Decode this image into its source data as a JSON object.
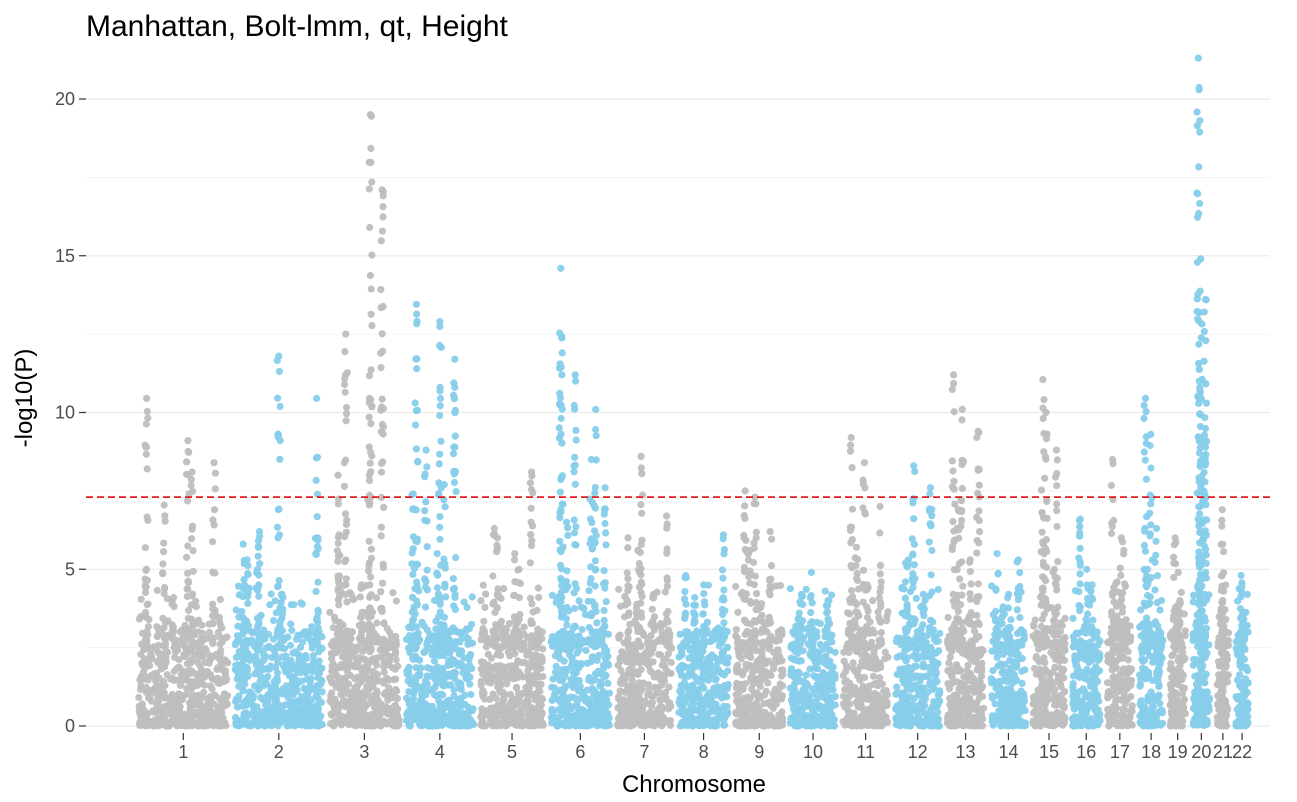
{
  "chart_data": {
    "type": "scatter",
    "title": "Manhattan, Bolt-lmm, qt, Height",
    "xlabel": "Chromosome",
    "ylabel": "-log10(P)",
    "ylim": [
      0,
      21.3
    ],
    "y_ticks": [
      0,
      5,
      10,
      15,
      20
    ],
    "grid": true,
    "threshold": {
      "value": 7.3,
      "color": "#e31a1c",
      "style": "dashed"
    },
    "colors": [
      "#bebebe",
      "#87ceeb"
    ],
    "chromosomes": [
      {
        "label": "1",
        "length": 249,
        "peaks": [
          10.45,
          9.1,
          8.4,
          7.05,
          8.1,
          5.0,
          4.1
        ]
      },
      {
        "label": "2",
        "length": 243,
        "peaks": [
          5.3,
          11.8,
          10.45,
          5.0,
          4.2,
          5.8,
          6.2
        ]
      },
      {
        "label": "3",
        "length": 198,
        "peaks": [
          6.1,
          19.5,
          17.1,
          12.5,
          8.9,
          8.0,
          4.5
        ]
      },
      {
        "label": "4",
        "length": 191,
        "peaks": [
          13.45,
          12.9,
          11.7,
          8.8,
          7.7,
          7.4,
          5.5
        ]
      },
      {
        "label": "5",
        "length": 181,
        "peaks": [
          6.3,
          5.5,
          8.1,
          6.0,
          5.0,
          4.4
        ]
      },
      {
        "label": "6",
        "length": 171,
        "peaks": [
          14.6,
          11.2,
          10.1,
          11.2,
          8.5,
          7.6,
          6.5
        ]
      },
      {
        "label": "7",
        "length": 159,
        "peaks": [
          6.0,
          8.6,
          6.7,
          5.6,
          4.2
        ]
      },
      {
        "label": "8",
        "length": 146,
        "peaks": [
          4.8,
          4.5,
          6.1,
          4.1
        ]
      },
      {
        "label": "9",
        "length": 141,
        "peaks": [
          7.5,
          7.3,
          6.2,
          5.6,
          3.9
        ]
      },
      {
        "label": "10",
        "length": 136,
        "peaks": [
          4.2,
          4.9,
          4.0,
          3.6
        ]
      },
      {
        "label": "11",
        "length": 135,
        "peaks": [
          9.2,
          8.4,
          7.0,
          5.7,
          4.5
        ]
      },
      {
        "label": "12",
        "length": 133,
        "peaks": [
          5.3,
          8.3,
          7.6,
          5.2,
          4.2
        ]
      },
      {
        "label": "13",
        "length": 114,
        "peaks": [
          11.2,
          10.1,
          9.4,
          6.9,
          5.3
        ]
      },
      {
        "label": "14",
        "length": 107,
        "peaks": [
          5.5,
          4.2,
          5.3,
          3.8
        ]
      },
      {
        "label": "15",
        "length": 102,
        "peaks": [
          11.05,
          10.0,
          8.8,
          6.8,
          5.0
        ]
      },
      {
        "label": "16",
        "length": 90,
        "peaks": [
          6.6,
          5.0,
          4.5
        ]
      },
      {
        "label": "17",
        "length": 83,
        "peaks": [
          8.5,
          6.0,
          5.6,
          4.6
        ]
      },
      {
        "label": "18",
        "length": 78,
        "peaks": [
          10.45,
          9.3,
          6.3,
          5.0
        ]
      },
      {
        "label": "19",
        "length": 59,
        "peaks": [
          6.0,
          4.9,
          4.0
        ]
      },
      {
        "label": "20",
        "length": 63,
        "peaks": [
          21.3,
          14.9,
          13.6,
          10.8,
          9.0,
          8.5,
          7.0
        ]
      },
      {
        "label": "21",
        "length": 48,
        "peaks": [
          6.9,
          5.8,
          4.3
        ]
      },
      {
        "label": "22",
        "length": 51,
        "peaks": [
          4.8,
          4.2,
          3.6
        ]
      }
    ]
  }
}
